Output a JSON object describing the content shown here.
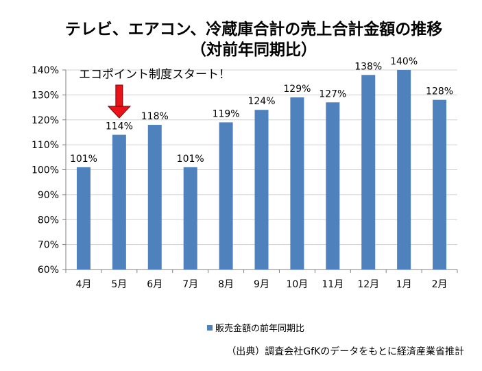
{
  "colors": {
    "bar": "#4F81BD",
    "arrow": "#E8141A",
    "axis": "#808080",
    "grid": "#D0D0D0"
  },
  "chart_data": {
    "type": "bar",
    "title": "テレビ、エアコン、冷蔵庫合計の売上合計金額の推移",
    "subtitle": "（対前年同期比）",
    "categories": [
      "4月",
      "5月",
      "6月",
      "7月",
      "8月",
      "9月",
      "10月",
      "11月",
      "12月",
      "1月",
      "2月"
    ],
    "series": [
      {
        "name": "販売金額の前年同期比",
        "values": [
          101,
          114,
          118,
          101,
          119,
          124,
          129,
          127,
          138,
          140,
          128
        ],
        "labels": [
          "101%",
          "114%",
          "118%",
          "101%",
          "119%",
          "124%",
          "129%",
          "127%",
          "138%",
          "140%",
          "128%"
        ]
      }
    ],
    "ylim": [
      60,
      140
    ],
    "yticks": [
      60,
      70,
      80,
      90,
      100,
      110,
      120,
      130,
      140
    ],
    "ytick_labels": [
      "60%",
      "70%",
      "80%",
      "90%",
      "100%",
      "110%",
      "120%",
      "130%",
      "140%"
    ],
    "legend": "bottom",
    "annotation": {
      "text": "エコポイント制度スタート！",
      "category": "5月"
    }
  },
  "footer": {
    "source": "（出典）調査会社GfKのデータをもとに経済産業省推計"
  }
}
